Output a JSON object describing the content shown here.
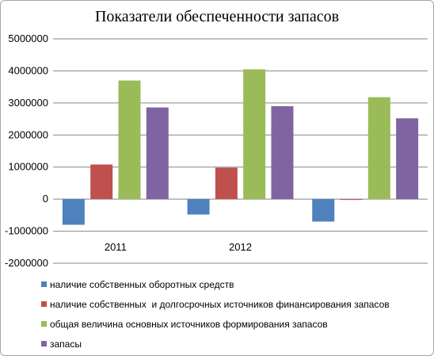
{
  "chart_data": {
    "type": "bar",
    "title": "Показатели обеспеченности запасов",
    "categories": [
      "2011",
      "2012",
      ""
    ],
    "ylim": [
      -2000000,
      5000000
    ],
    "ytick_step": 1000000,
    "grid": true,
    "legend_position": "bottom",
    "series": [
      {
        "name": "наличие собственных оборотных средств",
        "color": "#4f81bd",
        "values": [
          -800000,
          -480000,
          -700000
        ]
      },
      {
        "name": "наличие собственных  и долгосрочных источников финансирования запасов",
        "color": "#c0504d",
        "values": [
          1080000,
          980000,
          0
        ]
      },
      {
        "name": "общая величина основных источников формирования запасов",
        "color": "#9bbb59",
        "values": [
          3700000,
          4050000,
          3180000
        ]
      },
      {
        "name": "запасы",
        "color": "#8064a2",
        "values": [
          2860000,
          2900000,
          2520000
        ]
      }
    ]
  }
}
